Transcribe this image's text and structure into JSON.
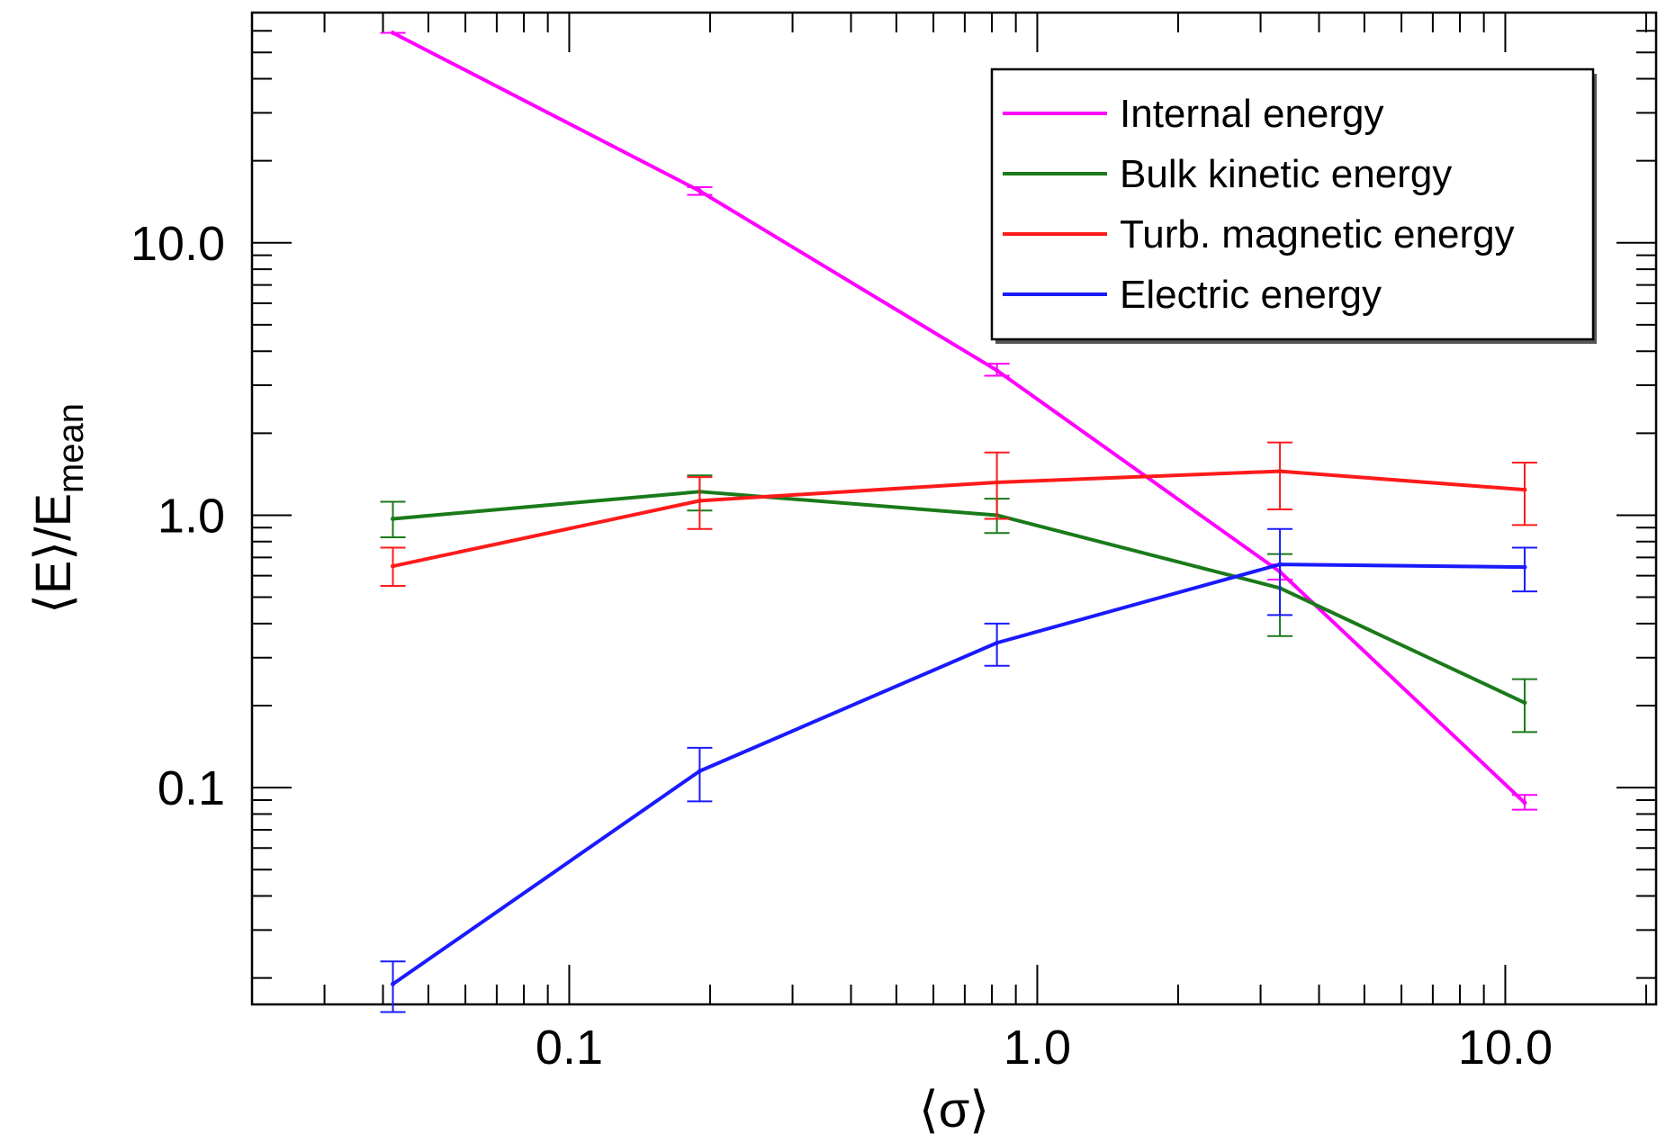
{
  "chart_data": {
    "type": "line",
    "x_scale": "log",
    "y_scale": "log",
    "xlim": [
      0.021,
      21
    ],
    "ylim": [
      0.016,
      70
    ],
    "grid": false,
    "xlabel": "⟨σ⟩",
    "ylabel": {
      "main": "⟨E⟩/E",
      "subscript": "mean"
    },
    "x_tick_labels": [
      {
        "value": 0.1,
        "label": "0.1"
      },
      {
        "value": 1.0,
        "label": "1.0"
      },
      {
        "value": 10.0,
        "label": "10.0"
      }
    ],
    "y_tick_labels": [
      {
        "value": 0.1,
        "label": "0.1"
      },
      {
        "value": 1.0,
        "label": "1.0"
      },
      {
        "value": 10.0,
        "label": "10.0"
      }
    ],
    "legend_position": "top-right",
    "series": [
      {
        "name": "Internal energy",
        "color": "#ff00ff",
        "x": [
          0.042,
          0.19,
          0.82,
          3.3,
          11
        ],
        "y": [
          59,
          15.5,
          3.4,
          0.62,
          0.088
        ],
        "err_low": [
          59,
          15.0,
          3.25,
          0.58,
          0.083
        ],
        "err_high": [
          59,
          16.0,
          3.6,
          0.66,
          0.094
        ]
      },
      {
        "name": "Bulk kinetic energy",
        "color": "#1a7a1a",
        "x": [
          0.042,
          0.19,
          0.82,
          3.3,
          11
        ],
        "y": [
          0.97,
          1.22,
          1.0,
          0.54,
          0.205
        ],
        "err_low": [
          0.83,
          1.04,
          0.86,
          0.36,
          0.16
        ],
        "err_high": [
          1.12,
          1.4,
          1.15,
          0.72,
          0.25
        ]
      },
      {
        "name": "Turb. magnetic energy",
        "color": "#ff1a1a",
        "x": [
          0.042,
          0.19,
          0.82,
          3.3,
          11
        ],
        "y": [
          0.65,
          1.13,
          1.32,
          1.45,
          1.24
        ],
        "err_low": [
          0.55,
          0.89,
          0.97,
          1.05,
          0.92
        ],
        "err_high": [
          0.76,
          1.38,
          1.7,
          1.85,
          1.56
        ]
      },
      {
        "name": "Electric energy",
        "color": "#1a1aff",
        "x": [
          0.042,
          0.19,
          0.82,
          3.3,
          11
        ],
        "y": [
          0.019,
          0.115,
          0.34,
          0.66,
          0.645
        ],
        "err_low": [
          0.015,
          0.089,
          0.28,
          0.43,
          0.525
        ],
        "err_high": [
          0.023,
          0.14,
          0.4,
          0.89,
          0.76
        ]
      }
    ]
  }
}
